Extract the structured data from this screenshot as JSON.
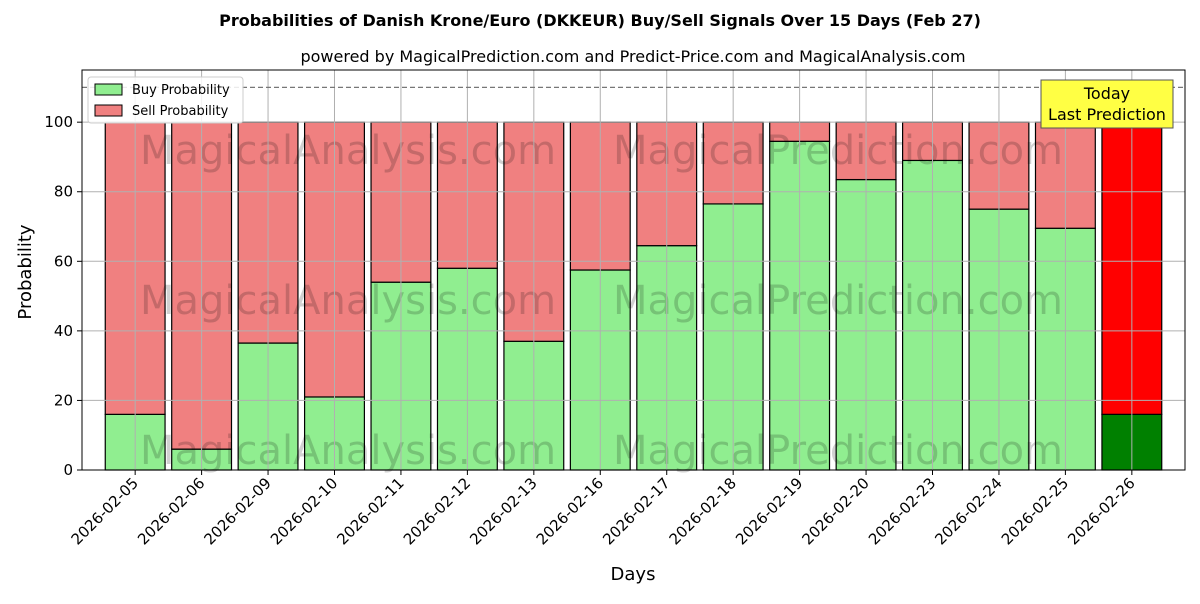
{
  "chart_data": {
    "type": "bar",
    "stacked": true,
    "title": "Probabilities of Danish Krone/Euro (DKKEUR) Buy/Sell Signals Over 15 Days (Feb 27)",
    "subtitle": "powered by MagicalPrediction.com and Predict-Price.com and MagicalAnalysis.com",
    "xlabel": "Days",
    "ylabel": "Probability",
    "ylim": [
      0,
      115
    ],
    "yticks": [
      0,
      20,
      40,
      60,
      80,
      100
    ],
    "reference_line": 110,
    "grid": true,
    "legend_placement": "top-left",
    "categories": [
      "2026-02-05",
      "2026-02-06",
      "2026-02-09",
      "2026-02-10",
      "2026-02-11",
      "2026-02-12",
      "2026-02-13",
      "2026-02-16",
      "2026-02-17",
      "2026-02-18",
      "2026-02-19",
      "2026-02-20",
      "2026-02-23",
      "2026-02-24",
      "2026-02-25",
      "2026-02-26"
    ],
    "series": [
      {
        "name": "Buy Probability",
        "color": "#90EE90",
        "values": [
          16,
          6,
          36.5,
          21,
          54,
          58,
          37,
          57.5,
          64.5,
          76.5,
          94.5,
          83.5,
          89,
          75,
          69.5,
          16
        ]
      },
      {
        "name": "Sell Probability",
        "color": "#F08080",
        "values": [
          84,
          94,
          63.5,
          79,
          46,
          42,
          63,
          42.5,
          35.5,
          23.5,
          5.5,
          16.5,
          11,
          25,
          30.5,
          84
        ]
      }
    ],
    "highlight": {
      "category_index": 15,
      "buy_color": "#008000",
      "sell_color": "#FF0000",
      "annotation": [
        "Today",
        "Last Prediction"
      ],
      "annotation_color": "#FFFF44"
    },
    "watermarks": [
      "MagicalAnalysis.com",
      "MagicalPrediction.com"
    ]
  }
}
